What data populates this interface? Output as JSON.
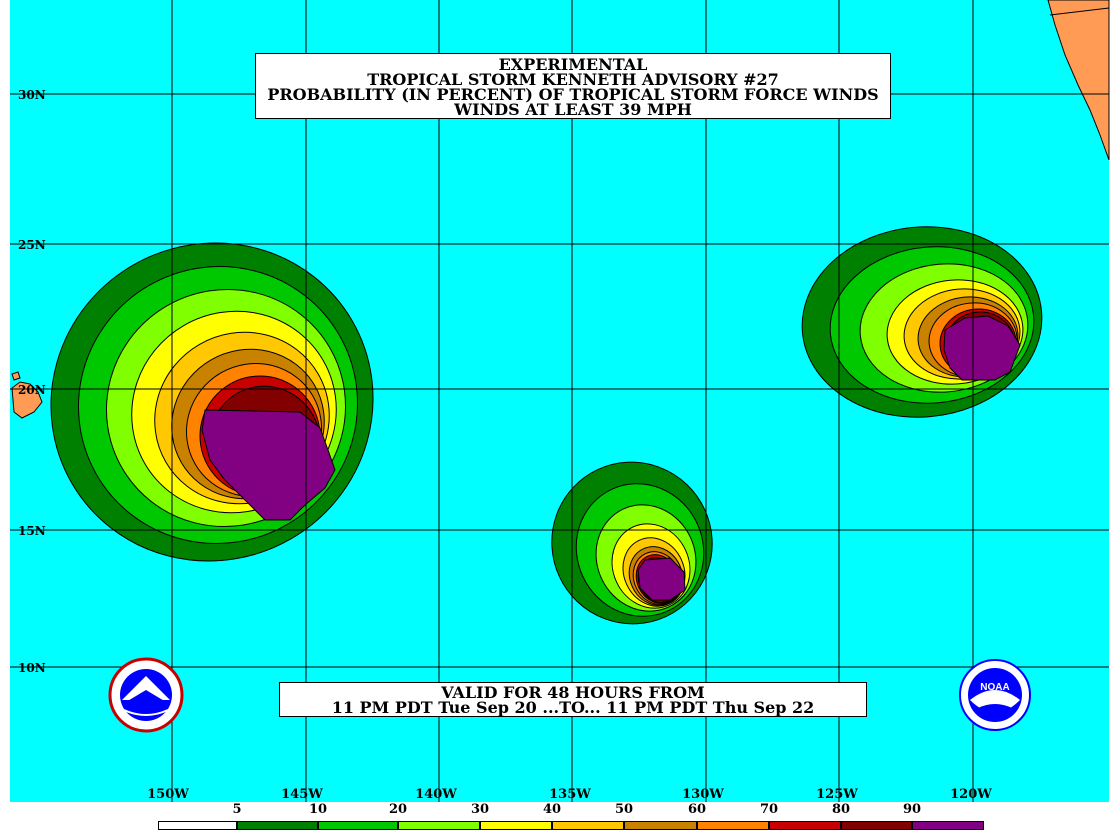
{
  "title": {
    "line1": "EXPERIMENTAL",
    "line2": "TROPICAL STORM KENNETH ADVISORY #27",
    "line3": "PROBABILITY (IN PERCENT) OF TROPICAL STORM FORCE WINDS",
    "line4": "WINDS AT LEAST 39 MPH"
  },
  "valid": {
    "line1": "VALID FOR 48 HOURS FROM",
    "line2": "11 PM PDT Tue Sep 20 ...TO... 11 PM PDT Thu Sep 22"
  },
  "latitude_labels": [
    "30N",
    "25N",
    "20N",
    "15N",
    "10N"
  ],
  "longitude_labels": [
    "150W",
    "145W",
    "140W",
    "135W",
    "130W",
    "125W",
    "120W"
  ],
  "legend": {
    "thresholds": [
      "5",
      "10",
      "20",
      "30",
      "40",
      "50",
      "60",
      "70",
      "80",
      "90"
    ],
    "colors": [
      "#ffffff",
      "#008000",
      "#00c800",
      "#80ff00",
      "#ffff00",
      "#ffc800",
      "#c88200",
      "#ff8200",
      "#c80000",
      "#820000",
      "#820082"
    ]
  },
  "colors": {
    "ocean": "#00ffff",
    "land": "#ff9b55",
    "grid": "#000000"
  },
  "logos": {
    "left": "nws-logo",
    "right": "noaa-logo",
    "noaa_text": "NOAA"
  }
}
